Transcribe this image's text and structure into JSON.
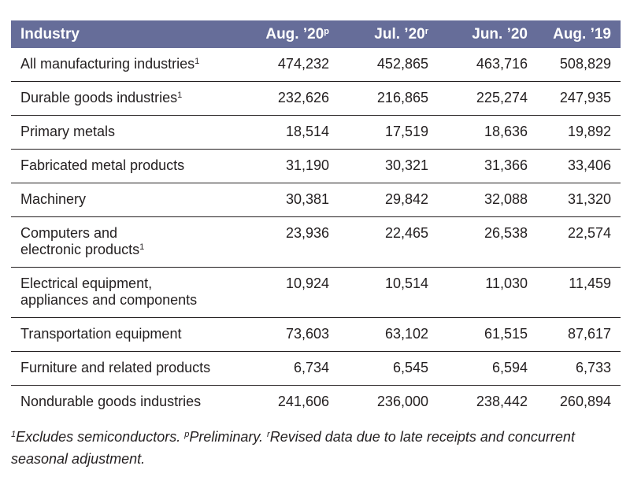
{
  "header": {
    "industry": "Industry",
    "col1": "Aug. ’20",
    "col1_sup": "p",
    "col2": "Jul. ’20",
    "col2_sup": "r",
    "col3": "Jun. ’20",
    "col4": "Aug. ’19"
  },
  "rows": [
    {
      "name_l1": "All manufacturing industries",
      "name_l2": "",
      "sup": "1",
      "v1": "474,232",
      "v2": "452,865",
      "v3": "463,716",
      "v4": "508,829"
    },
    {
      "name_l1": "Durable goods industries",
      "name_l2": "",
      "sup": "1",
      "v1": "232,626",
      "v2": "216,865",
      "v3": "225,274",
      "v4": "247,935"
    },
    {
      "name_l1": "Primary metals",
      "name_l2": "",
      "sup": "",
      "v1": "18,514",
      "v2": "17,519",
      "v3": "18,636",
      "v4": "19,892"
    },
    {
      "name_l1": "Fabricated metal products",
      "name_l2": "",
      "sup": "",
      "v1": "31,190",
      "v2": "30,321",
      "v3": "31,366",
      "v4": "33,406"
    },
    {
      "name_l1": "Machinery",
      "name_l2": "",
      "sup": "",
      "v1": "30,381",
      "v2": "29,842",
      "v3": "32,088",
      "v4": "31,320"
    },
    {
      "name_l1": "Computers and",
      "name_l2": "electronic products",
      "sup": "1",
      "v1": "23,936",
      "v2": "22,465",
      "v3": "26,538",
      "v4": "22,574"
    },
    {
      "name_l1": "Electrical equipment,",
      "name_l2": "appliances and components",
      "sup": "",
      "v1": "10,924",
      "v2": "10,514",
      "v3": "11,030",
      "v4": "11,459"
    },
    {
      "name_l1": "Transportation equipment",
      "name_l2": "",
      "sup": "",
      "v1": "73,603",
      "v2": "63,102",
      "v3": "61,515",
      "v4": "87,617"
    },
    {
      "name_l1": "Furniture and related products",
      "name_l2": "",
      "sup": "",
      "v1": "6,734",
      "v2": "6,545",
      "v3": "6,594",
      "v4": "6,733"
    },
    {
      "name_l1": "Nondurable goods industries",
      "name_l2": "",
      "sup": "",
      "v1": "241,606",
      "v2": "236,000",
      "v3": "238,442",
      "v4": "260,894"
    }
  ],
  "footnote": {
    "sup1": "1",
    "text1": "Excludes semiconductors. ",
    "sup2": "p",
    "text2": "Preliminary. ",
    "sup3": "r",
    "text3": "Revised data due to late receipts and concurrent seasonal adjustment."
  }
}
